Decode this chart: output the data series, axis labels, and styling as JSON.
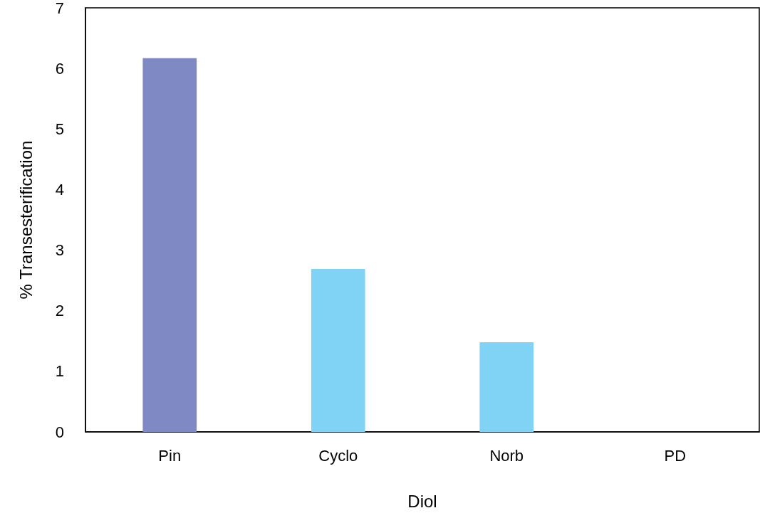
{
  "chart_data": {
    "type": "bar",
    "xlabel": "Diol",
    "ylabel": "% Transesterification",
    "categories": [
      "Pin",
      "Cyclo",
      "Norb",
      "PD"
    ],
    "values": [
      6.17,
      2.69,
      1.48,
      0
    ],
    "colors": [
      "#7f8ac5",
      "#81d3f5",
      "#81d3f5",
      "#81d3f5"
    ],
    "ylim": [
      0,
      7
    ],
    "yticks": [
      0,
      1,
      2,
      3,
      4,
      5,
      6,
      7
    ],
    "grid": false
  }
}
